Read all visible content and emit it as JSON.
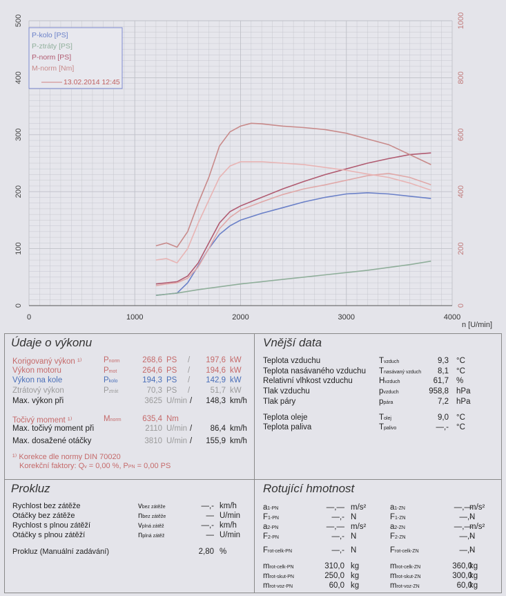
{
  "chart_data": {
    "type": "line",
    "x_axis": {
      "label": "n [U/min]",
      "range": [
        0,
        4000
      ],
      "ticks": [
        "0",
        "1000",
        "2000",
        "3000",
        "4000"
      ]
    },
    "y_left": {
      "range": [
        0,
        500
      ],
      "ticks": [
        "0",
        "100",
        "200",
        "300",
        "400",
        "500"
      ]
    },
    "y_right": {
      "range": [
        0,
        1000
      ],
      "ticks": [
        "0",
        "200",
        "400",
        "600",
        "800",
        "1000"
      ]
    },
    "legend": {
      "position": "top-left",
      "entries": [
        "P-kolo [PS]",
        "P-ztráty [PS]",
        "P-norm [PS]",
        "M-norm [Nm]"
      ],
      "date": "13.02.2014 12:45"
    },
    "series": [
      {
        "name": "P-kolo [PS]",
        "axis": "left",
        "color": "#6a80c8",
        "x": [
          1200,
          1300,
          1400,
          1500,
          1600,
          1700,
          1800,
          1900,
          2000,
          2200,
          2400,
          2600,
          2800,
          3000,
          3200,
          3400,
          3600,
          3800
        ],
        "y": [
          18,
          20,
          22,
          40,
          70,
          100,
          125,
          140,
          150,
          162,
          172,
          182,
          190,
          196,
          198,
          196,
          192,
          188
        ]
      },
      {
        "name": "P-ztráty [PS]",
        "axis": "left",
        "color": "#8fae9a",
        "x": [
          1200,
          1400,
          1600,
          1800,
          2000,
          2200,
          2400,
          2600,
          2800,
          3000,
          3200,
          3400,
          3600,
          3800
        ],
        "y": [
          18,
          22,
          28,
          33,
          38,
          42,
          46,
          50,
          54,
          58,
          62,
          67,
          72,
          78
        ]
      },
      {
        "name": "P-norm [PS]",
        "axis": "left",
        "color": "#b05a70",
        "x": [
          1200,
          1300,
          1400,
          1500,
          1600,
          1700,
          1800,
          1900,
          2000,
          2200,
          2400,
          2600,
          2800,
          3000,
          3200,
          3400,
          3600,
          3800
        ],
        "y": [
          38,
          40,
          42,
          52,
          75,
          110,
          145,
          165,
          175,
          190,
          205,
          218,
          230,
          240,
          250,
          258,
          265,
          268
        ]
      },
      {
        "name": "M-norm [Nm]",
        "axis": "right",
        "color": "#c88a8a",
        "x": [
          1200,
          1300,
          1400,
          1500,
          1600,
          1700,
          1800,
          1900,
          2000,
          2100,
          2200,
          2400,
          2600,
          2800,
          3000,
          3200,
          3400,
          3600,
          3800
        ],
        "y": [
          210,
          220,
          205,
          260,
          360,
          450,
          560,
          610,
          630,
          640,
          638,
          630,
          625,
          618,
          605,
          585,
          565,
          530,
          495
        ]
      },
      {
        "name": "",
        "axis": "left",
        "color": "#e0a8a8",
        "x": [
          1200,
          1300,
          1400,
          1500,
          1600,
          1700,
          1800,
          1900,
          2000,
          2200,
          2400,
          2600,
          2800,
          3000,
          3200,
          3400,
          3600,
          3800
        ],
        "y": [
          35,
          38,
          40,
          48,
          68,
          100,
          135,
          155,
          168,
          182,
          195,
          205,
          212,
          220,
          228,
          232,
          225,
          212
        ]
      },
      {
        "name": "",
        "axis": "right",
        "color": "#e8b4b4",
        "x": [
          1200,
          1300,
          1400,
          1500,
          1600,
          1700,
          1800,
          1900,
          2000,
          2200,
          2400,
          2600,
          2800,
          3000,
          3200,
          3400,
          3600,
          3800
        ],
        "y": [
          160,
          165,
          150,
          200,
          290,
          370,
          450,
          490,
          505,
          505,
          500,
          495,
          485,
          475,
          462,
          450,
          430,
          405
        ]
      }
    ]
  },
  "vykon": {
    "title": "Údaje o výkonu",
    "rows": [
      {
        "label": "Korigovaný výkon ¹⁾",
        "sym": "P",
        "sub": "norm",
        "v1": "268,6",
        "u1": "PS",
        "v2": "197,6",
        "u2": "kW",
        "cls": "red"
      },
      {
        "label": "Výkon motoru",
        "sym": "P",
        "sub": "mot",
        "v1": "264,6",
        "u1": "PS",
        "v2": "194,6",
        "u2": "kW",
        "cls": "red"
      },
      {
        "label": "Výkon na kole",
        "sym": "P",
        "sub": "kolo",
        "v1": "194,3",
        "u1": "PS",
        "v2": "142,9",
        "u2": "kW",
        "cls": "blue"
      },
      {
        "label": "Ztrátový výkon",
        "sym": "P",
        "sub": "ztrát",
        "v1": "70,3",
        "u1": "PS",
        "v2": "51,7",
        "u2": "kW",
        "cls": "gray"
      }
    ],
    "max_power": {
      "label": "Max. výkon při",
      "rpm": "3625",
      "rpm_unit": "U/min",
      "speed": "148,3",
      "speed_unit": "km/h"
    },
    "torque": {
      "label": "Točivý moment ¹⁾",
      "sym": "M",
      "sub": "norm",
      "value": "635,4",
      "unit": "Nm"
    },
    "max_torque": {
      "label": "Max. točivý moment při",
      "rpm": "2110",
      "rpm_unit": "U/min",
      "speed": "86,4",
      "speed_unit": "km/h"
    },
    "max_rpm": {
      "label": "Max. dosažené otáčky",
      "rpm": "3810",
      "rpm_unit": "U/min",
      "speed": "155,9",
      "speed_unit": "km/h"
    },
    "note1": "¹⁾ Korekce dle normy DIN 70020",
    "note2": "Korekční faktory: Q",
    "note2b": "= 0,00 %, P",
    "note2c": "= 0,00 PS",
    "note_sub1": "v",
    "note_sub2": "PN"
  },
  "vnejsi": {
    "title": "Vnější data",
    "rows": [
      {
        "label": "Teplota vzduchu",
        "sym": "T",
        "sub": "vzduch",
        "value": "9,3",
        "unit": "°C"
      },
      {
        "label": "Teplota nasávaného vzduchu",
        "sym": "T",
        "sub": "nasávaný vzduch",
        "value": "8,1",
        "unit": "°C"
      },
      {
        "label": "Relativní vlhkost vzduchu",
        "sym": "H",
        "sub": "vzduch",
        "value": "61,7",
        "unit": "%"
      },
      {
        "label": "Tlak vzduchu",
        "sym": "p",
        "sub": "vzduch",
        "value": "958,8",
        "unit": "hPa"
      },
      {
        "label": "Tlak páry",
        "sym": "p",
        "sub": "pára",
        "value": "7,2",
        "unit": "hPa"
      },
      {
        "label": "Teplota oleje",
        "sym": "T",
        "sub": "olej",
        "value": "9,0",
        "unit": "°C"
      },
      {
        "label": "Teplota paliva",
        "sym": "T",
        "sub": "palivo",
        "value": "—,-",
        "unit": "°C"
      }
    ]
  },
  "prokluz": {
    "title": "Prokluz",
    "rows": [
      {
        "label": "Rychlost bez zátěže",
        "sym": "v",
        "sub": "bez zátěže",
        "value": "—,-",
        "unit": "km/h"
      },
      {
        "label": "Otáčky bez zátěže",
        "sym": "n",
        "sub": "bez zátěže",
        "value": "—",
        "unit": "U/min"
      },
      {
        "label": "Rychlost s plnou zátěží",
        "sym": "v",
        "sub": "plná zátěž",
        "value": "—,-",
        "unit": "km/h"
      },
      {
        "label": "Otáčky s plnou zátěží",
        "sym": "n",
        "sub": "plná zátěž",
        "value": "—",
        "unit": "U/min"
      }
    ],
    "manual": {
      "label": "Prokluz (Manuální zadávání)",
      "value": "2,80",
      "unit": "%"
    }
  },
  "rotujici": {
    "title": "Rotující hmotnost",
    "left": [
      {
        "sym": "a",
        "sub": "1-PN",
        "value": "—,—",
        "unit": "m/s²"
      },
      {
        "sym": "F",
        "sub": "1-PN",
        "value": "—,-",
        "unit": "N"
      },
      {
        "sym": "a",
        "sub": "2-PN",
        "value": "—,—",
        "unit": "m/s²"
      },
      {
        "sym": "F",
        "sub": "2-PN",
        "value": "—,-",
        "unit": "N"
      },
      {
        "sym": "F",
        "sub": "rot-celk-PN",
        "value": "—,-",
        "unit": "N"
      },
      {
        "sym": "m",
        "sub": "rot-celk-PN",
        "value": "310,0",
        "unit": "kg"
      },
      {
        "sym": "m",
        "sub": "rot-skut-PN",
        "value": "250,0",
        "unit": "kg"
      },
      {
        "sym": "m",
        "sub": "rot-voz-PN",
        "value": "60,0",
        "unit": "kg"
      }
    ],
    "right": [
      {
        "sym": "a",
        "sub": "1-ZN",
        "value": "—,—",
        "unit": "m/s²"
      },
      {
        "sym": "F",
        "sub": "1-ZN",
        "value": "—,-",
        "unit": "N"
      },
      {
        "sym": "a",
        "sub": "2-ZN",
        "value": "—,—",
        "unit": "m/s²"
      },
      {
        "sym": "F",
        "sub": "2-ZN",
        "value": "—,-",
        "unit": "N"
      },
      {
        "sym": "F",
        "sub": "rot-celk-ZN",
        "value": "—,-",
        "unit": "N"
      },
      {
        "sym": "m",
        "sub": "rot-celk-ZN",
        "value": "360,0",
        "unit": "kg"
      },
      {
        "sym": "m",
        "sub": "rot-skut-ZN",
        "value": "300,0",
        "unit": "kg"
      },
      {
        "sym": "m",
        "sub": "rot-voz-ZN",
        "value": "60,0",
        "unit": "kg"
      }
    ]
  }
}
